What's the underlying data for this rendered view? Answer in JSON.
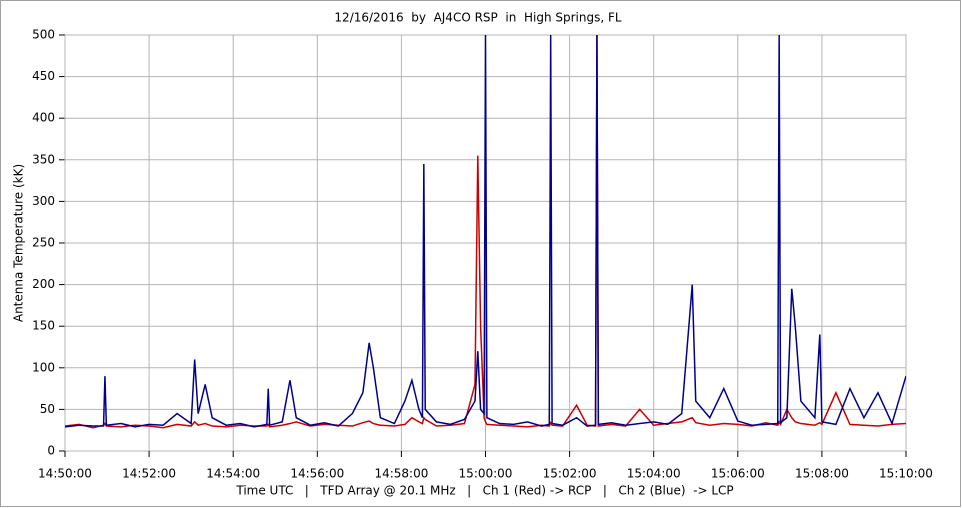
{
  "chart_data": {
    "type": "line",
    "title": "12/16/2016  by  AJ4CO RSP  in  High Springs, FL",
    "ylabel": "Antenna Temperature (kK)",
    "xlabel": "Time UTC   |   TFD Array @ 20.1 MHz   |   Ch 1 (Red) -> RCP   |   Ch 2 (Blue)  -> LCP",
    "x": [
      "14:50:00",
      "14:50:20",
      "14:50:40",
      "14:50:55",
      "14:50:57",
      "14:50:59",
      "14:51:20",
      "14:51:40",
      "14:52:00",
      "14:52:20",
      "14:52:40",
      "14:53:00",
      "14:53:05",
      "14:53:10",
      "14:53:20",
      "14:53:30",
      "14:53:50",
      "14:54:10",
      "14:54:30",
      "14:54:48",
      "14:54:50",
      "14:54:52",
      "14:55:10",
      "14:55:21",
      "14:55:30",
      "14:55:50",
      "14:56:10",
      "14:56:30",
      "14:56:50",
      "14:57:05",
      "14:57:14",
      "14:57:20",
      "14:57:30",
      "14:57:50",
      "14:58:05",
      "14:58:15",
      "14:58:25",
      "14:58:30",
      "14:58:32",
      "14:58:34",
      "14:58:50",
      "14:59:10",
      "14:59:30",
      "14:59:45",
      "14:59:49",
      "14:59:53",
      "14:59:58",
      "15:00:00",
      "15:00:02",
      "15:00:20",
      "15:00:40",
      "15:01:00",
      "15:01:20",
      "15:01:31",
      "15:01:33",
      "15:01:35",
      "15:01:50",
      "15:02:10",
      "15:02:25",
      "15:02:37",
      "15:02:39",
      "15:02:41",
      "15:03:00",
      "15:03:20",
      "15:03:40",
      "15:04:00",
      "15:04:20",
      "15:04:40",
      "15:04:55",
      "15:05:00",
      "15:05:20",
      "15:05:40",
      "15:06:00",
      "15:06:20",
      "15:06:40",
      "15:06:57",
      "15:06:59",
      "15:07:01",
      "15:07:10",
      "15:07:17",
      "15:07:22",
      "15:07:30",
      "15:07:50",
      "15:07:57",
      "15:08:00",
      "15:08:20",
      "15:08:40",
      "15:09:00",
      "15:09:20",
      "15:09:40",
      "15:10:00"
    ],
    "series": [
      {
        "color": "#cc0000",
        "values": [
          30,
          32,
          28,
          31,
          33,
          30,
          29,
          31,
          30,
          28,
          32,
          30,
          35,
          31,
          33,
          30,
          29,
          31,
          30,
          30,
          32,
          29,
          31,
          33,
          35,
          30,
          32,
          31,
          30,
          34,
          36,
          33,
          31,
          30,
          32,
          40,
          35,
          33,
          40,
          38,
          30,
          31,
          33,
          80,
          355,
          150,
          40,
          35,
          32,
          31,
          30,
          29,
          31,
          30,
          34,
          31,
          30,
          55,
          31,
          30,
          500,
          30,
          32,
          30,
          50,
          31,
          33,
          35,
          40,
          34,
          31,
          33,
          32,
          30,
          34,
          31,
          35,
          32,
          50,
          40,
          35,
          33,
          31,
          34,
          32,
          70,
          32,
          31,
          30,
          32,
          33
        ]
      },
      {
        "color": "#00008b",
        "values": [
          29,
          31,
          30,
          30,
          90,
          31,
          33,
          29,
          32,
          31,
          45,
          33,
          110,
          45,
          80,
          40,
          31,
          33,
          29,
          32,
          75,
          31,
          35,
          85,
          40,
          31,
          34,
          30,
          45,
          70,
          130,
          100,
          40,
          33,
          60,
          85,
          50,
          40,
          345,
          50,
          35,
          32,
          38,
          60,
          120,
          50,
          45,
          500,
          40,
          33,
          32,
          35,
          30,
          32,
          500,
          33,
          31,
          40,
          30,
          31,
          500,
          32,
          34,
          31,
          33,
          35,
          32,
          45,
          200,
          60,
          40,
          75,
          36,
          31,
          32,
          33,
          500,
          34,
          40,
          195,
          150,
          60,
          40,
          140,
          35,
          32,
          75,
          40,
          70,
          33,
          90
        ]
      }
    ],
    "xlim": [
      "14:50:00",
      "15:10:00"
    ],
    "xticks": [
      "14:50:00",
      "14:52:00",
      "14:54:00",
      "14:56:00",
      "14:58:00",
      "15:00:00",
      "15:02:00",
      "15:04:00",
      "15:06:00",
      "15:08:00",
      "15:10:00"
    ],
    "ylim": [
      0,
      500
    ],
    "yticks": [
      0,
      50,
      100,
      150,
      200,
      250,
      300,
      350,
      400,
      450,
      500
    ],
    "grid": true
  }
}
